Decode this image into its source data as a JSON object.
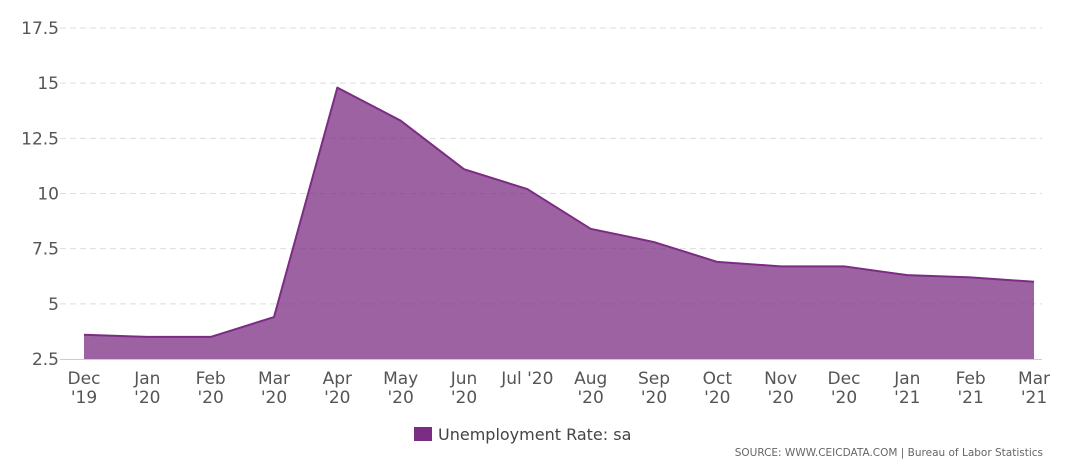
{
  "chart_data": {
    "type": "area",
    "title": "",
    "xlabel": "",
    "ylabel": "",
    "categories": [
      [
        "Dec",
        "'19"
      ],
      [
        "Jan",
        "'20"
      ],
      [
        "Feb",
        "'20"
      ],
      [
        "Mar",
        "'20"
      ],
      [
        "Apr",
        "'20"
      ],
      [
        "May",
        "'20"
      ],
      [
        "Jun",
        "'20"
      ],
      [
        "Jul '20",
        ""
      ],
      [
        "Aug",
        "'20"
      ],
      [
        "Sep",
        "'20"
      ],
      [
        "Oct",
        "'20"
      ],
      [
        "Nov",
        "'20"
      ],
      [
        "Dec",
        "'20"
      ],
      [
        "Jan",
        "'21"
      ],
      [
        "Feb",
        "'21"
      ],
      [
        "Mar",
        "'21"
      ]
    ],
    "series": [
      {
        "name": "Unemployment Rate: sa",
        "color": "#7b2d83",
        "values": [
          3.6,
          3.5,
          3.5,
          4.4,
          14.8,
          13.3,
          11.1,
          10.2,
          8.4,
          7.8,
          6.9,
          6.7,
          6.7,
          6.3,
          6.2,
          6.0
        ]
      }
    ],
    "ylim": [
      2.5,
      17.5
    ],
    "yticks": [
      "2.5",
      "5",
      "7.5",
      "10",
      "12.5",
      "15",
      "17.5"
    ],
    "ytick_values": [
      2.5,
      5,
      7.5,
      10,
      12.5,
      15,
      17.5
    ],
    "grid": true,
    "legend_position": "bottom-center"
  },
  "legend": {
    "label": "Unemployment Rate: sa",
    "color": "#7b2d83"
  },
  "source": "SOURCE: WWW.CEICDATA.COM | Bureau of Labor Statistics"
}
